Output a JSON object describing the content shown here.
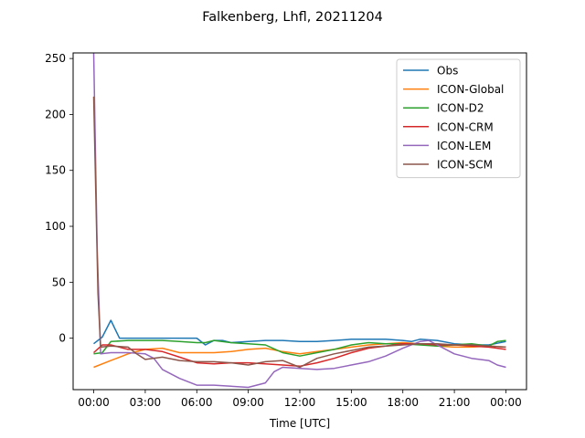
{
  "chart_data": {
    "type": "line",
    "title": "Falkenberg, Lhfl, 20211204",
    "xlabel": "Time [UTC]",
    "ylabel": "",
    "xlim": [
      -1.2,
      25.2
    ],
    "ylim": [
      -46,
      255
    ],
    "x_ticks": [
      0,
      3,
      6,
      9,
      12,
      15,
      18,
      21,
      24
    ],
    "x_tick_labels": [
      "00:00",
      "03:00",
      "06:00",
      "09:00",
      "12:00",
      "15:00",
      "18:00",
      "21:00",
      "00:00"
    ],
    "y_ticks": [
      0,
      50,
      100,
      150,
      200,
      250
    ],
    "y_tick_labels": [
      "0",
      "50",
      "100",
      "150",
      "200",
      "250"
    ],
    "legend_position": "top-right",
    "grid": false,
    "series": [
      {
        "name": "Obs",
        "color": "#1f77b4",
        "x": [
          0,
          0.5,
          1.0,
          1.5,
          2,
          3,
          4,
          5,
          6,
          6.5,
          7,
          7.5,
          8,
          9,
          10,
          11,
          12,
          13,
          14,
          15,
          16,
          17,
          18,
          18.5,
          19,
          20,
          21,
          22,
          23,
          24
        ],
        "y": [
          -5,
          1,
          16,
          0,
          0,
          0,
          0,
          0,
          0,
          -6,
          -2,
          -2,
          -4,
          -3,
          -2,
          -2,
          -3,
          -3,
          -2,
          -1,
          -1,
          -1,
          -2,
          -3,
          -1,
          -2,
          -5,
          -6,
          -6,
          -3
        ]
      },
      {
        "name": "ICON-Global",
        "color": "#ff7f0e",
        "x": [
          0,
          1,
          2,
          3,
          4,
          5,
          6,
          7,
          8,
          9,
          10,
          11,
          12,
          13,
          14,
          15,
          16,
          17,
          18,
          19,
          20,
          21,
          22,
          23,
          24
        ],
        "y": [
          -26,
          -20,
          -14,
          -10,
          -9,
          -13,
          -13,
          -13,
          -12,
          -10,
          -9,
          -12,
          -14,
          -12,
          -10,
          -8,
          -6,
          -5,
          -4,
          -5,
          -7,
          -8,
          -8,
          -7,
          -8
        ]
      },
      {
        "name": "ICON-D2",
        "color": "#2ca02c",
        "x": [
          0,
          0.5,
          1,
          2,
          3,
          4,
          5,
          6,
          6.5,
          7,
          8,
          9,
          10,
          11,
          12,
          13,
          14,
          15,
          16,
          17,
          18,
          19,
          20,
          21,
          22,
          23,
          23.5,
          24
        ],
        "y": [
          -14,
          -13,
          -3,
          -2,
          -2,
          -2,
          -3,
          -4,
          -4,
          -2,
          -4,
          -5,
          -6,
          -13,
          -16,
          -13,
          -10,
          -6,
          -4,
          -5,
          -5,
          -6,
          -7,
          -6,
          -5,
          -7,
          -3,
          -2
        ]
      },
      {
        "name": "ICON-CRM",
        "color": "#d62728",
        "x": [
          0,
          0.5,
          1,
          2,
          3,
          4,
          5,
          6,
          7,
          8,
          9,
          10,
          11,
          12,
          13,
          14,
          15,
          16,
          17,
          18,
          19,
          20,
          21,
          22,
          23,
          24
        ],
        "y": [
          -13,
          -6,
          -6,
          -10,
          -10,
          -12,
          -17,
          -22,
          -23,
          -22,
          -22,
          -23,
          -24,
          -25,
          -22,
          -18,
          -13,
          -9,
          -7,
          -5,
          -5,
          -6,
          -6,
          -7,
          -8,
          -10
        ]
      },
      {
        "name": "ICON-LEM",
        "color": "#9467bd",
        "x": [
          0,
          0.2,
          0.4,
          1,
          2,
          3,
          3.5,
          4,
          5,
          6,
          7,
          8,
          9,
          10,
          10.5,
          11,
          12,
          13,
          14,
          15,
          16,
          17,
          18,
          19,
          19.5,
          20,
          21,
          22,
          23,
          23.5,
          24
        ],
        "y": [
          255,
          80,
          -14,
          -13,
          -13,
          -14,
          -18,
          -28,
          -36,
          -42,
          -42,
          -43,
          -44,
          -40,
          -30,
          -26,
          -27,
          -28,
          -27,
          -24,
          -21,
          -16,
          -9,
          -3,
          -2,
          -6,
          -14,
          -18,
          -20,
          -24,
          -26
        ]
      },
      {
        "name": "ICON-SCM",
        "color": "#8c564b",
        "x": [
          0,
          0.25,
          0.4,
          1,
          2,
          2.5,
          3,
          4,
          5,
          6,
          7,
          8,
          9,
          10,
          11,
          12,
          13,
          14,
          15,
          16,
          17,
          18,
          19,
          20,
          21,
          22,
          23,
          24
        ],
        "y": [
          216,
          40,
          -8,
          -7,
          -8,
          -14,
          -19,
          -17,
          -20,
          -21,
          -21,
          -22,
          -24,
          -21,
          -20,
          -26,
          -18,
          -14,
          -11,
          -8,
          -7,
          -6,
          -5,
          -5,
          -6,
          -6,
          -7,
          -8
        ]
      }
    ]
  }
}
